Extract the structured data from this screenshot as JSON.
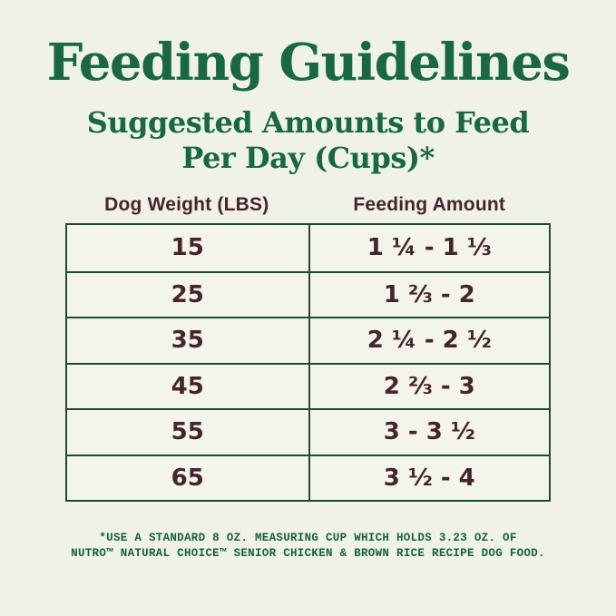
{
  "page": {
    "background_color": "#F0F2E8",
    "title": "Feeding Guidelines",
    "subtitle": "Suggested Amounts to Feed\nPer Day (Cups)*"
  },
  "colors": {
    "heading_green": "#176843",
    "table_border_green": "#1F4B33",
    "value_brown": "#45242C",
    "footnote_green": "#166140"
  },
  "table": {
    "columns": [
      {
        "label": "Dog Weight (LBS)"
      },
      {
        "label": "Feeding Amount"
      }
    ],
    "rows": [
      {
        "weight": "15",
        "amount": "1 ¼ - 1 ⅓"
      },
      {
        "weight": "25",
        "amount": "1 ⅔ - 2"
      },
      {
        "weight": "35",
        "amount": "2 ¼ - 2 ½"
      },
      {
        "weight": "45",
        "amount": "2 ⅔ - 3"
      },
      {
        "weight": "55",
        "amount": "3 - 3 ½"
      },
      {
        "weight": "65",
        "amount": "3 ½ - 4"
      }
    ]
  },
  "footnote": "*USE A STANDARD 8 OZ. MEASURING CUP WHICH HOLDS 3.23 OZ. OF\nNUTRO™ NATURAL CHOICE™ SENIOR CHICKEN & BROWN RICE RECIPE DOG FOOD."
}
